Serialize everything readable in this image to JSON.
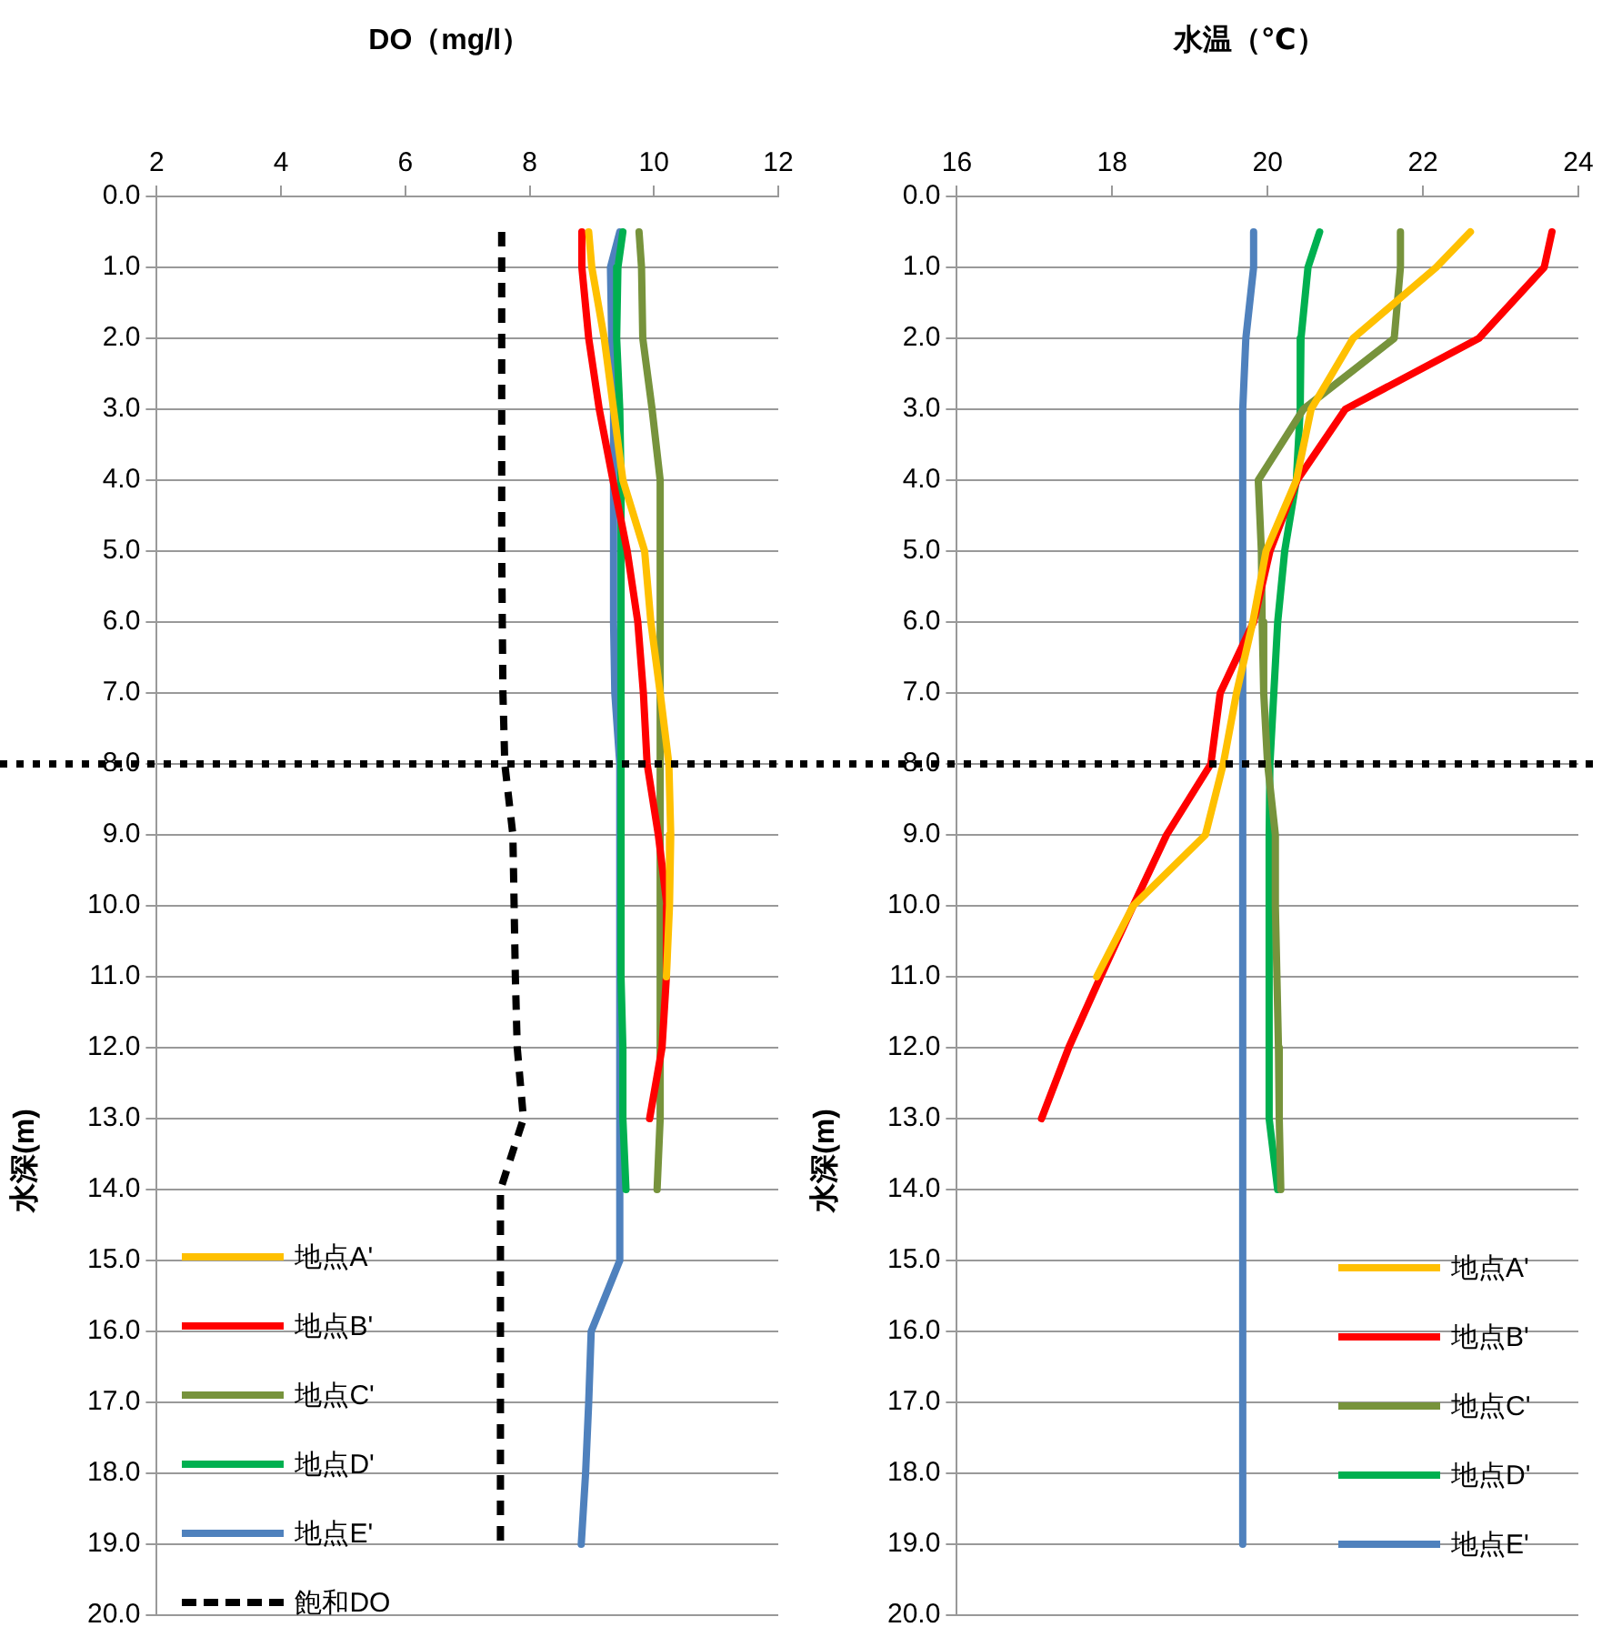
{
  "chart_data": [
    {
      "type": "line",
      "title": "DO（mg/l）",
      "ylabel": "水深(m)",
      "xlim": [
        2,
        12
      ],
      "xticks": [
        2,
        4,
        6,
        8,
        10,
        12
      ],
      "ylim": [
        20,
        0
      ],
      "yticks": [
        {
          "value": 0,
          "label": "0.0"
        },
        {
          "value": 1,
          "label": "1.0"
        },
        {
          "value": 2,
          "label": "2.0"
        },
        {
          "value": 3,
          "label": "3.0"
        },
        {
          "value": 4,
          "label": "4.0"
        },
        {
          "value": 5,
          "label": "5.0"
        },
        {
          "value": 6,
          "label": "6.0"
        },
        {
          "value": 7,
          "label": "7.0"
        },
        {
          "value": 8,
          "label": "8.0"
        },
        {
          "value": 9,
          "label": "9.0"
        },
        {
          "value": 10,
          "label": "10.0"
        },
        {
          "value": 11,
          "label": "11.0"
        },
        {
          "value": 12,
          "label": "12.0"
        },
        {
          "value": 13,
          "label": "13.0"
        },
        {
          "value": 14,
          "label": "14.0"
        },
        {
          "value": 15,
          "label": "15.0"
        },
        {
          "value": 16,
          "label": "16.0"
        },
        {
          "value": 17,
          "label": "17.0"
        },
        {
          "value": 18,
          "label": "18.0"
        },
        {
          "value": 19,
          "label": "19.0"
        },
        {
          "value": 20,
          "label": "20.0"
        }
      ],
      "grid": "y",
      "legend": "bottom left",
      "marker": "none",
      "line_style": "solid",
      "ref_lines": [
        {
          "axis": "y",
          "value": 8,
          "color": "#000000",
          "line_style": "dotted"
        }
      ],
      "series": [
        {
          "name": "地点A'",
          "color": "#ffc000",
          "x": [
            8.95,
            9.0,
            9.2,
            9.35,
            9.5,
            9.85,
            9.95,
            10.1,
            10.24,
            10.27,
            10.25,
            10.2
          ],
          "values": [
            0.5,
            1,
            2,
            3,
            4,
            5,
            6,
            7,
            8,
            9,
            10,
            11
          ]
        },
        {
          "name": "地点B'",
          "color": "#ff0000",
          "x": [
            8.84,
            8.84,
            8.95,
            9.12,
            9.34,
            9.57,
            9.74,
            9.83,
            9.89,
            10.07,
            10.21,
            10.2,
            10.13,
            9.93
          ],
          "values": [
            0.5,
            1,
            2,
            3,
            4,
            5,
            6,
            7,
            8,
            9,
            10,
            11,
            12,
            13
          ]
        },
        {
          "name": "地点C'",
          "color": "#77933c",
          "x": [
            9.76,
            9.8,
            9.82,
            9.97,
            10.1,
            10.1,
            10.1,
            10.1,
            10.1,
            10.1,
            10.1,
            10.1,
            10.1,
            10.1,
            10.05
          ],
          "values": [
            0.5,
            1,
            2,
            3,
            4,
            5,
            6,
            7,
            8,
            9,
            10,
            11,
            12,
            13,
            14
          ]
        },
        {
          "name": "地点D'",
          "color": "#00b050",
          "x": [
            9.5,
            9.42,
            9.4,
            9.45,
            9.47,
            9.47,
            9.47,
            9.47,
            9.47,
            9.47,
            9.47,
            9.47,
            9.5,
            9.5,
            9.55
          ],
          "values": [
            0.5,
            1,
            2,
            3,
            4,
            5,
            6,
            7,
            8,
            9,
            10,
            11,
            12,
            13,
            14
          ]
        },
        {
          "name": "地点E'",
          "color": "#4f81bd",
          "x": [
            9.45,
            9.3,
            9.32,
            9.35,
            9.35,
            9.35,
            9.35,
            9.37,
            9.45,
            9.45,
            9.45,
            9.45,
            9.45,
            9.45,
            9.45,
            9.45,
            8.99,
            8.95,
            8.9,
            8.83
          ],
          "values": [
            0.5,
            1,
            2,
            3,
            4,
            5,
            6,
            7,
            8,
            9,
            10,
            11,
            12,
            13,
            14,
            15,
            16,
            17,
            18,
            19
          ]
        },
        {
          "name": "飽和DO",
          "color": "#000000",
          "line_style": "dashed",
          "x": [
            7.55,
            7.55,
            7.55,
            7.55,
            7.55,
            7.55,
            7.56,
            7.57,
            7.6,
            7.73,
            7.75,
            7.77,
            7.8,
            7.9,
            7.53,
            7.53,
            7.53,
            7.53,
            7.53,
            7.53
          ],
          "values": [
            0.5,
            1,
            2,
            3,
            4,
            5,
            6,
            7,
            8,
            9,
            10,
            11,
            12,
            13,
            14,
            15,
            16,
            17,
            18,
            19
          ]
        }
      ]
    },
    {
      "type": "line",
      "title": "水温（℃）",
      "ylabel": "水深(m)",
      "xlim": [
        16,
        24
      ],
      "xticks": [
        16,
        18,
        20,
        22,
        24
      ],
      "ylim": [
        20,
        0
      ],
      "yticks": [
        {
          "value": 0,
          "label": "0.0"
        },
        {
          "value": 1,
          "label": "1.0"
        },
        {
          "value": 2,
          "label": "2.0"
        },
        {
          "value": 3,
          "label": "3.0"
        },
        {
          "value": 4,
          "label": "4.0"
        },
        {
          "value": 5,
          "label": "5.0"
        },
        {
          "value": 6,
          "label": "6.0"
        },
        {
          "value": 7,
          "label": "7.0"
        },
        {
          "value": 8,
          "label": "8.0"
        },
        {
          "value": 9,
          "label": "9.0"
        },
        {
          "value": 10,
          "label": "10.0"
        },
        {
          "value": 11,
          "label": "11.0"
        },
        {
          "value": 12,
          "label": "12.0"
        },
        {
          "value": 13,
          "label": "13.0"
        },
        {
          "value": 14,
          "label": "14.0"
        },
        {
          "value": 15,
          "label": "15.0"
        },
        {
          "value": 16,
          "label": "16.0"
        },
        {
          "value": 17,
          "label": "17.0"
        },
        {
          "value": 18,
          "label": "18.0"
        },
        {
          "value": 19,
          "label": "19.0"
        },
        {
          "value": 20,
          "label": "20.0"
        }
      ],
      "grid": "y",
      "legend": "bottom right",
      "marker": "none",
      "line_style": "solid",
      "ref_lines": [
        {
          "axis": "y",
          "value": 8,
          "color": "#000000",
          "line_style": "dotted"
        }
      ],
      "series": [
        {
          "name": "地点A'",
          "color": "#ffc000",
          "x": [
            22.61,
            22.17,
            21.1,
            20.56,
            20.37,
            19.98,
            19.81,
            19.6,
            19.43,
            19.2,
            18.27,
            17.8
          ],
          "values": [
            0.5,
            1,
            2,
            3,
            4,
            5,
            6,
            7,
            8,
            9,
            10,
            11
          ]
        },
        {
          "name": "地点B'",
          "color": "#ff0000",
          "x": [
            23.66,
            23.56,
            22.72,
            21.0,
            20.38,
            20.03,
            19.82,
            19.39,
            19.27,
            18.7,
            18.27,
            17.85,
            17.44,
            17.09
          ],
          "values": [
            0.5,
            1,
            2,
            3,
            4,
            5,
            6,
            7,
            8,
            9,
            10,
            11,
            12,
            13
          ]
        },
        {
          "name": "地点C'",
          "color": "#77933c",
          "x": [
            21.71,
            21.71,
            21.63,
            20.46,
            19.88,
            19.92,
            19.93,
            19.95,
            20.0,
            20.1,
            20.1,
            20.12,
            20.14,
            20.15,
            20.17
          ],
          "values": [
            0.5,
            1,
            2,
            3,
            4,
            5,
            6,
            7,
            8,
            9,
            10,
            11,
            12,
            13,
            14
          ]
        },
        {
          "name": "地点D'",
          "color": "#00b050",
          "x": [
            20.67,
            20.52,
            20.43,
            20.42,
            20.37,
            20.22,
            20.13,
            20.08,
            20.03,
            20.02,
            20.02,
            20.02,
            20.02,
            20.02,
            20.13
          ],
          "values": [
            0.5,
            1,
            2,
            3,
            4,
            5,
            6,
            7,
            8,
            9,
            10,
            11,
            12,
            13,
            14
          ]
        },
        {
          "name": "地点E'",
          "color": "#4f81bd",
          "x": [
            19.82,
            19.82,
            19.72,
            19.68,
            19.68,
            19.68,
            19.68,
            19.68,
            19.68,
            19.68,
            19.68,
            19.68,
            19.68,
            19.68,
            19.68,
            19.68,
            19.68,
            19.68,
            19.68,
            19.68
          ],
          "values": [
            0.5,
            1,
            2,
            3,
            4,
            5,
            6,
            7,
            8,
            9,
            10,
            11,
            12,
            13,
            14,
            15,
            16,
            17,
            18,
            19
          ]
        }
      ]
    }
  ]
}
